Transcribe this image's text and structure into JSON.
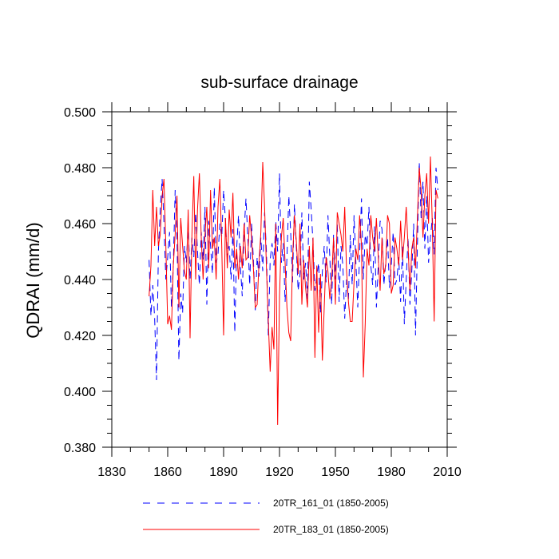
{
  "chart_data": {
    "type": "line",
    "title": "sub-surface drainage",
    "xlabel": "",
    "ylabel": "QDRAI  (mm/d)",
    "xlim": [
      1830,
      2010
    ],
    "ylim": [
      0.38,
      0.5
    ],
    "xticks": [
      1830,
      1860,
      1890,
      1920,
      1950,
      1980,
      2010
    ],
    "xtick_labels": [
      "1830",
      "1860",
      "1890",
      "1920",
      "1950",
      "1980",
      "2010"
    ],
    "yticks": [
      0.38,
      0.4,
      0.42,
      0.44,
      0.46,
      0.48,
      0.5
    ],
    "ytick_labels": [
      "0.380",
      "0.400",
      "0.420",
      "0.440",
      "0.460",
      "0.480",
      "0.500"
    ],
    "grid": false,
    "legend_position": "bottom",
    "x_start": 1850,
    "x_step": 1,
    "series": [
      {
        "name": "20TR_161_01 (1850-2005)",
        "color": "#0000ff",
        "dash": "dashed",
        "values": [
          0.447,
          0.427,
          0.438,
          0.426,
          0.404,
          0.45,
          0.465,
          0.476,
          0.46,
          0.44,
          0.448,
          0.457,
          0.43,
          0.445,
          0.472,
          0.455,
          0.411,
          0.435,
          0.428,
          0.452,
          0.446,
          0.46,
          0.44,
          0.455,
          0.448,
          0.464,
          0.45,
          0.438,
          0.457,
          0.447,
          0.466,
          0.431,
          0.461,
          0.452,
          0.442,
          0.473,
          0.446,
          0.449,
          0.46,
          0.455,
          0.472,
          0.461,
          0.448,
          0.452,
          0.44,
          0.458,
          0.421,
          0.451,
          0.463,
          0.445,
          0.434,
          0.457,
          0.469,
          0.455,
          0.438,
          0.46,
          0.447,
          0.429,
          0.448,
          0.441,
          0.455,
          0.443,
          0.464,
          0.45,
          0.42,
          0.447,
          0.453,
          0.445,
          0.461,
          0.45,
          0.478,
          0.446,
          0.453,
          0.432,
          0.448,
          0.47,
          0.457,
          0.439,
          0.467,
          0.452,
          0.436,
          0.442,
          0.464,
          0.44,
          0.446,
          0.433,
          0.475,
          0.465,
          0.453,
          0.436,
          0.441,
          0.446,
          0.428,
          0.443,
          0.452,
          0.439,
          0.463,
          0.448,
          0.431,
          0.456,
          0.44,
          0.46,
          0.432,
          0.452,
          0.445,
          0.426,
          0.44,
          0.433,
          0.456,
          0.438,
          0.463,
          0.446,
          0.43,
          0.449,
          0.469,
          0.44,
          0.456,
          0.452,
          0.466,
          0.445,
          0.438,
          0.459,
          0.43,
          0.445,
          0.461,
          0.458,
          0.438,
          0.446,
          0.455,
          0.437,
          0.445,
          0.457,
          0.438,
          0.44,
          0.448,
          0.432,
          0.452,
          0.424,
          0.44,
          0.455,
          0.431,
          0.443,
          0.46,
          0.42,
          0.452,
          0.482,
          0.462,
          0.475,
          0.451,
          0.47,
          0.446,
          0.455,
          0.462,
          0.449,
          0.48,
          0.472
        ]
      },
      {
        "name": "20TR_183_01 (1850-2005)",
        "color": "#ff0000",
        "dash": "solid",
        "values": [
          0.434,
          0.445,
          0.472,
          0.452,
          0.466,
          0.452,
          0.456,
          0.47,
          0.476,
          0.452,
          0.424,
          0.427,
          0.422,
          0.445,
          0.456,
          0.47,
          0.43,
          0.462,
          0.452,
          0.443,
          0.44,
          0.465,
          0.419,
          0.456,
          0.477,
          0.44,
          0.465,
          0.478,
          0.455,
          0.44,
          0.456,
          0.466,
          0.444,
          0.472,
          0.451,
          0.455,
          0.44,
          0.466,
          0.476,
          0.452,
          0.42,
          0.462,
          0.444,
          0.465,
          0.455,
          0.471,
          0.444,
          0.451,
          0.44,
          0.452,
          0.444,
          0.46,
          0.447,
          0.448,
          0.463,
          0.455,
          0.444,
          0.43,
          0.431,
          0.446,
          0.457,
          0.482,
          0.466,
          0.444,
          0.425,
          0.407,
          0.423,
          0.415,
          0.46,
          0.388,
          0.434,
          0.455,
          0.462,
          0.446,
          0.43,
          0.421,
          0.418,
          0.447,
          0.463,
          0.454,
          0.442,
          0.46,
          0.431,
          0.447,
          0.437,
          0.43,
          0.452,
          0.436,
          0.455,
          0.412,
          0.445,
          0.421,
          0.442,
          0.411,
          0.43,
          0.448,
          0.443,
          0.433,
          0.44,
          0.455,
          0.431,
          0.464,
          0.46,
          0.456,
          0.45,
          0.466,
          0.443,
          0.432,
          0.425,
          0.425,
          0.439,
          0.451,
          0.447,
          0.463,
          0.452,
          0.405,
          0.424,
          0.451,
          0.445,
          0.463,
          0.455,
          0.45,
          0.462,
          0.448,
          0.436,
          0.455,
          0.442,
          0.445,
          0.463,
          0.46,
          0.435,
          0.438,
          0.455,
          0.451,
          0.445,
          0.461,
          0.447,
          0.455,
          0.466,
          0.452,
          0.436,
          0.451,
          0.455,
          0.444,
          0.462,
          0.48,
          0.472,
          0.455,
          0.47,
          0.478,
          0.46,
          0.484,
          0.46,
          0.425,
          0.472,
          0.469
        ]
      }
    ]
  }
}
